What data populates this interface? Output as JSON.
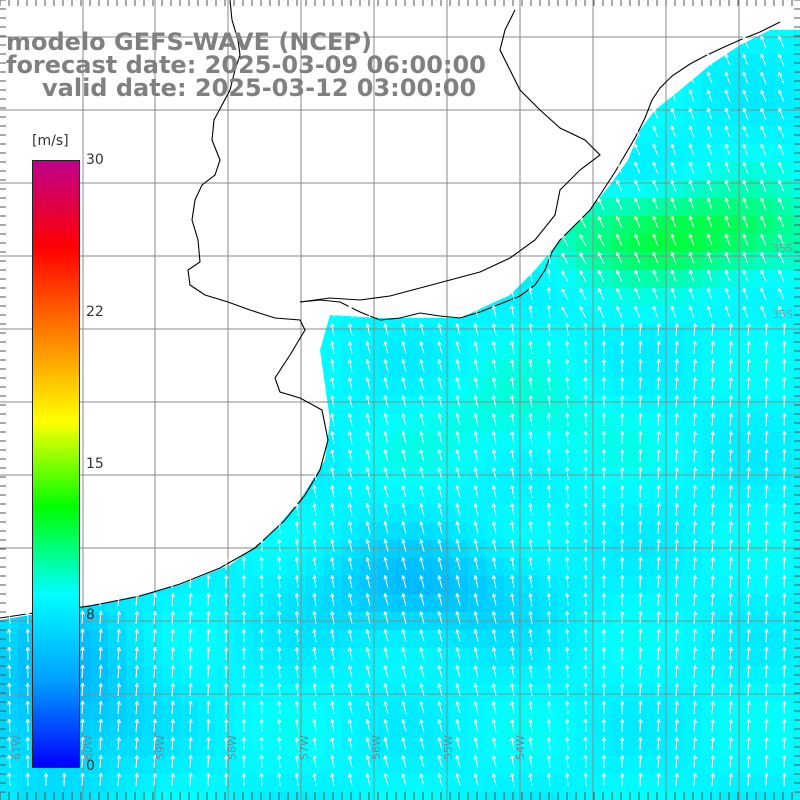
{
  "title": {
    "model": "modelo GEFS-WAVE (NCEP)",
    "forecast": "forecast date: 2025-03-09 06:00:00",
    "valid": "valid date: 2025-03-12 03:00:00"
  },
  "colorbar": {
    "unit": "[m/s]",
    "min": 0,
    "max": 30,
    "ticks": [
      "30",
      "22",
      "15",
      "8",
      "0"
    ],
    "stops": [
      "#0000ff",
      "#00a0ff",
      "#00ffff",
      "#00ff00",
      "#ffff00",
      "#ff8000",
      "#ff0000",
      "#c0008a"
    ]
  },
  "map": {
    "variable": "wind speed (m/s) and direction",
    "wind_field_dominant_direction": "from south-southeast",
    "colors": {
      "land": "#ffffff",
      "coast": "#000000",
      "grid": "#8a8a8a",
      "arrows": "#ffffff"
    },
    "edge_labels_right": [
      "35S",
      "35S"
    ],
    "edge_labels_bottom": [
      "61W",
      "60W",
      "59W",
      "58W",
      "57W",
      "56W",
      "55W",
      "54W"
    ]
  }
}
